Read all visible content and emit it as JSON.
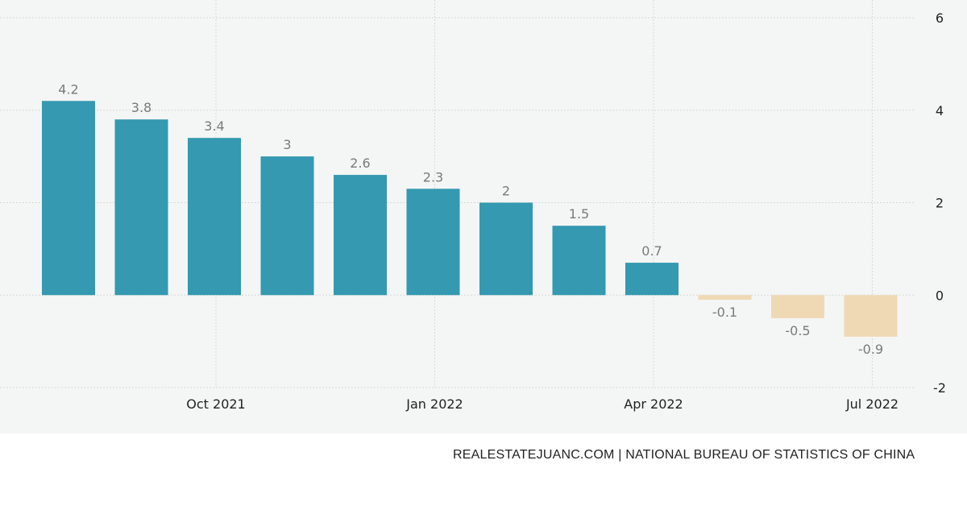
{
  "chart_data": {
    "type": "bar",
    "title": "",
    "xlabel": "",
    "ylabel": "",
    "values": [
      4.2,
      3.8,
      3.4,
      3,
      2.6,
      2.3,
      2,
      1.5,
      0.7,
      -0.1,
      -0.5,
      -0.9
    ],
    "value_labels": [
      "4.2",
      "3.8",
      "3.4",
      "3",
      "2.6",
      "2.3",
      "2",
      "1.5",
      "0.7",
      "-0.1",
      "-0.5",
      "-0.9"
    ],
    "x_tick_labels": [
      {
        "label": "Oct 2021",
        "bar_index": 2
      },
      {
        "label": "Jan 2022",
        "bar_index": 5
      },
      {
        "label": "Apr 2022",
        "bar_index": 8
      },
      {
        "label": "Jul 2022",
        "bar_index": 11
      }
    ],
    "y_ticks": [
      -2,
      0,
      2,
      4,
      6
    ],
    "ylim": [
      -2,
      6
    ],
    "y_axis_side": "right",
    "grid": true,
    "colors": {
      "positive": "#3499b1",
      "negative": "#efd9b4",
      "background": "#f4f5f5",
      "gridline": "#d9d9d9"
    }
  },
  "footer": {
    "source": "REALESTATEJUANC.COM | NATIONAL BUREAU OF STATISTICS OF CHINA"
  }
}
